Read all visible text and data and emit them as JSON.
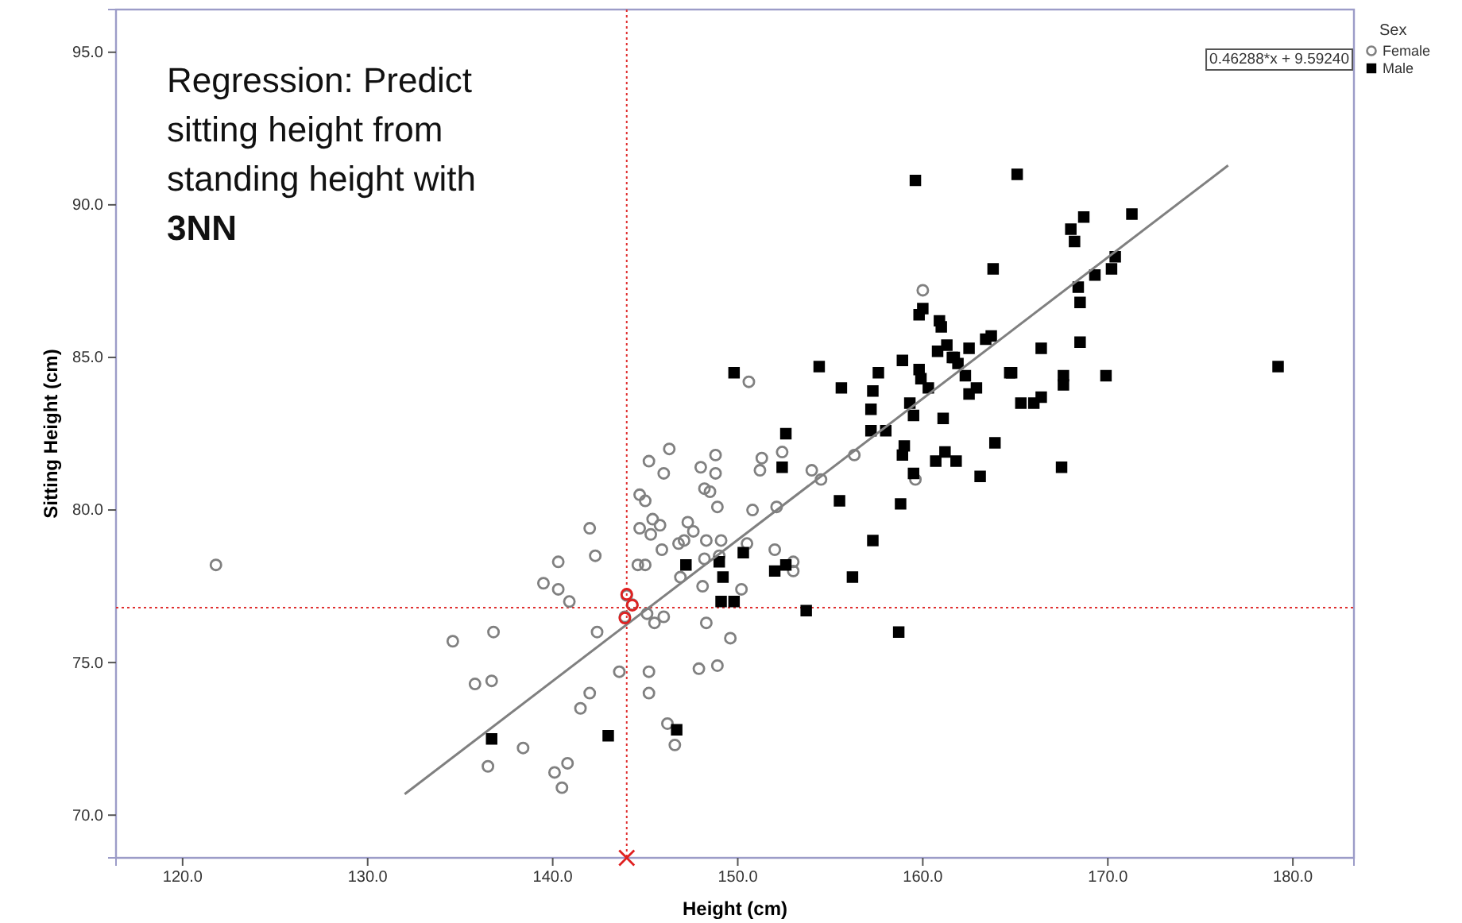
{
  "chart_data": {
    "type": "scatter",
    "title": "Regression: Predict sitting height from standing height with 3NN",
    "xlabel": "Height (cm)",
    "ylabel": "Sitting Height (cm)",
    "legend_title": "Sex",
    "legend": "top right",
    "grid": false,
    "xlim": [
      116.4,
      183.3
    ],
    "ylim": [
      68.6,
      96.4
    ],
    "xticks": [
      {
        "value": 120,
        "label": "120.0"
      },
      {
        "value": 130,
        "label": "130.0"
      },
      {
        "value": 140,
        "label": "140.0"
      },
      {
        "value": 150,
        "label": "150.0"
      },
      {
        "value": 160,
        "label": "160.0"
      },
      {
        "value": 170,
        "label": "170.0"
      },
      {
        "value": 180,
        "label": "180.0"
      }
    ],
    "yticks": [
      {
        "value": 70,
        "label": "70.0"
      },
      {
        "value": 75,
        "label": "75.0"
      },
      {
        "value": 80,
        "label": "80.0"
      },
      {
        "value": 85,
        "label": "85.0"
      },
      {
        "value": 90,
        "label": "90.0"
      },
      {
        "value": 95,
        "label": "95.0"
      }
    ],
    "annotations": [
      "0.46288*x + 9.59240"
    ],
    "ref_lines": [
      {
        "axis": "x",
        "value": 144.0,
        "color": "#e03030",
        "line_style": "dotted"
      },
      {
        "axis": "y",
        "value": 76.8,
        "color": "#e03030",
        "line_style": "dotted"
      }
    ],
    "series": [
      {
        "name": "Female",
        "marker": "circle",
        "color": "#808080",
        "x": [
          121.8,
          140.3,
          139.5,
          140.3,
          140.9,
          134.6,
          136.8,
          135.8,
          136.7,
          138.4,
          136.5,
          140.1,
          140.8,
          140.5,
          150.6,
          146.3,
          145.2,
          146.0,
          148.0,
          148.8,
          148.8,
          151.3,
          151.2,
          152.4,
          144.7,
          145.0,
          148.2,
          148.5,
          148.9,
          150.8,
          152.1,
          142.0,
          144.7,
          145.4,
          145.8,
          145.3,
          147.3,
          147.6,
          146.8,
          147.1,
          148.3,
          149.1,
          145.9,
          142.3,
          144.6,
          145.0,
          148.2,
          149.0,
          150.5,
          152.0,
          153.0,
          153.0,
          146.9,
          148.1,
          150.2,
          145.1,
          145.5,
          146.0,
          142.4,
          148.3,
          149.6,
          147.9,
          148.9,
          143.6,
          145.2,
          142.0,
          145.2,
          141.5,
          146.2,
          146.6,
          156.3,
          154.0,
          154.5,
          159.6,
          160.0,
          144.0,
          144.3,
          143.9
        ],
        "values": [
          78.2,
          78.3,
          77.6,
          77.4,
          77.0,
          75.7,
          76.0,
          74.3,
          74.4,
          72.2,
          71.6,
          71.4,
          71.7,
          70.9,
          84.2,
          82.0,
          81.6,
          81.2,
          81.4,
          81.8,
          81.2,
          81.7,
          81.3,
          81.9,
          80.5,
          80.3,
          80.7,
          80.6,
          80.1,
          80.0,
          80.1,
          79.4,
          79.4,
          79.7,
          79.5,
          79.2,
          79.6,
          79.3,
          78.9,
          79.0,
          79.0,
          79.0,
          78.7,
          78.5,
          78.2,
          78.2,
          78.4,
          78.5,
          78.9,
          78.7,
          78.3,
          78.0,
          77.8,
          77.5,
          77.4,
          76.6,
          76.3,
          76.5,
          76.0,
          76.3,
          75.8,
          74.8,
          74.9,
          74.7,
          74.7,
          74.0,
          74.0,
          73.5,
          73.0,
          72.3,
          81.8,
          81.3,
          81.0,
          81.0,
          87.2,
          77.2,
          76.9,
          76.5
        ]
      },
      {
        "name": "Male",
        "marker": "square",
        "color": "#000000",
        "x": [
          136.7,
          152.6,
          152.4,
          147.2,
          149.0,
          149.2,
          150.3,
          152.0,
          152.6,
          149.1,
          149.8,
          153.7,
          143.0,
          146.7,
          149.8,
          154.4,
          155.6,
          157.3,
          157.6,
          158.9,
          159.8,
          160.0,
          160.9,
          161.0,
          159.8,
          159.9,
          160.3,
          160.8,
          161.3,
          161.6,
          161.9,
          162.5,
          162.3,
          162.9,
          162.5,
          163.4,
          163.7,
          164.7,
          157.2,
          159.5,
          159.3,
          161.1,
          157.2,
          158.0,
          159.0,
          158.9,
          161.2,
          160.7,
          161.8,
          163.1,
          163.9,
          159.5,
          155.5,
          158.8,
          157.3,
          156.2,
          158.7,
          159.6,
          165.1,
          168.7,
          171.3,
          168.0,
          168.2,
          170.4,
          170.2,
          169.3,
          168.4,
          168.5,
          163.8,
          168.5,
          166.4,
          169.9,
          164.8,
          167.6,
          167.6,
          165.3,
          166.0,
          166.4,
          167.5,
          179.2,
          161.7
        ],
        "values": [
          72.5,
          82.5,
          81.4,
          78.2,
          78.3,
          77.8,
          78.6,
          78.0,
          78.2,
          77.0,
          77.0,
          76.7,
          72.6,
          72.8,
          84.5,
          84.7,
          84.0,
          83.9,
          84.5,
          84.9,
          86.4,
          86.6,
          86.2,
          86.0,
          84.6,
          84.3,
          84.0,
          85.2,
          85.4,
          85.0,
          84.8,
          85.3,
          84.4,
          84.0,
          83.8,
          85.6,
          85.7,
          84.5,
          83.3,
          83.1,
          83.5,
          83.0,
          82.6,
          82.6,
          82.1,
          81.8,
          81.9,
          81.6,
          81.6,
          81.1,
          82.2,
          81.2,
          80.3,
          80.2,
          79.0,
          77.8,
          76.0,
          90.8,
          91.0,
          89.6,
          89.7,
          89.2,
          88.8,
          88.3,
          87.9,
          87.7,
          87.3,
          86.8,
          87.9,
          85.5,
          85.3,
          84.4,
          84.5,
          84.4,
          84.1,
          83.5,
          83.5,
          83.7,
          81.4,
          84.7,
          85.0
        ]
      },
      {
        "type": "line",
        "color": "#808080",
        "x": [
          132,
          176.5
        ],
        "values": [
          70.69,
          91.29
        ]
      },
      {
        "marker": "circle",
        "color": "#e02020",
        "x": [
          144.0,
          144.3,
          143.9
        ],
        "values": [
          77.24,
          76.88,
          76.46
        ]
      },
      {
        "marker": "cross",
        "color": "#e02020",
        "x": [
          144.0
        ],
        "values": [
          68.6
        ]
      }
    ]
  }
}
